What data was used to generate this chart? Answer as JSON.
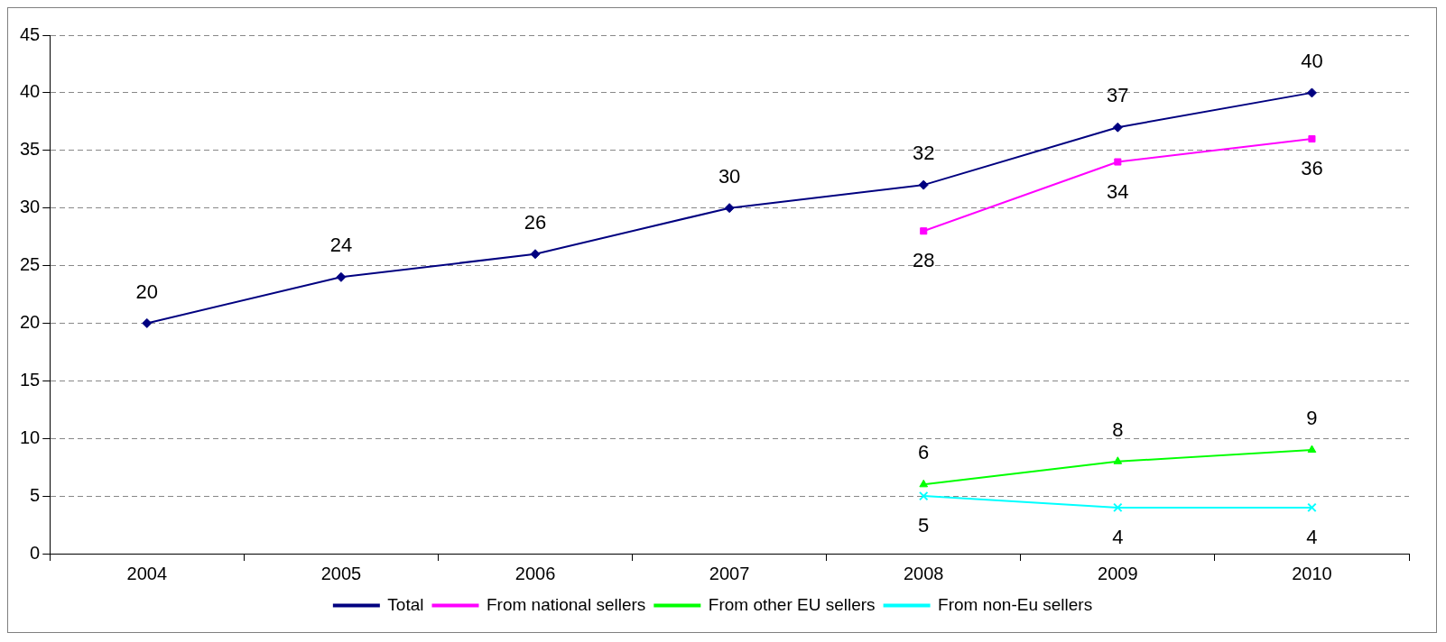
{
  "chart_data": {
    "type": "line",
    "categories": [
      "2004",
      "2005",
      "2006",
      "2007",
      "2008",
      "2009",
      "2010"
    ],
    "series": [
      {
        "name": "Total",
        "color": "#000080",
        "marker": "diamond",
        "values": [
          20,
          24,
          26,
          30,
          32,
          37,
          40
        ]
      },
      {
        "name": "From national sellers",
        "color": "#ff00ff",
        "marker": "square",
        "values": [
          null,
          null,
          null,
          null,
          28,
          34,
          36
        ]
      },
      {
        "name": "From other EU sellers",
        "color": "#00ff00",
        "marker": "triangle",
        "values": [
          null,
          null,
          null,
          null,
          6,
          8,
          9
        ]
      },
      {
        "name": "From non-Eu sellers",
        "color": "#00ffff",
        "marker": "cross",
        "values": [
          null,
          null,
          null,
          null,
          5,
          4,
          4
        ]
      }
    ],
    "ylim": [
      0,
      45
    ],
    "yticks": [
      0,
      5,
      10,
      15,
      20,
      25,
      30,
      35,
      40,
      45
    ],
    "grid": "y",
    "legend": "bottom",
    "data_labels": true,
    "line_style": "solid"
  }
}
